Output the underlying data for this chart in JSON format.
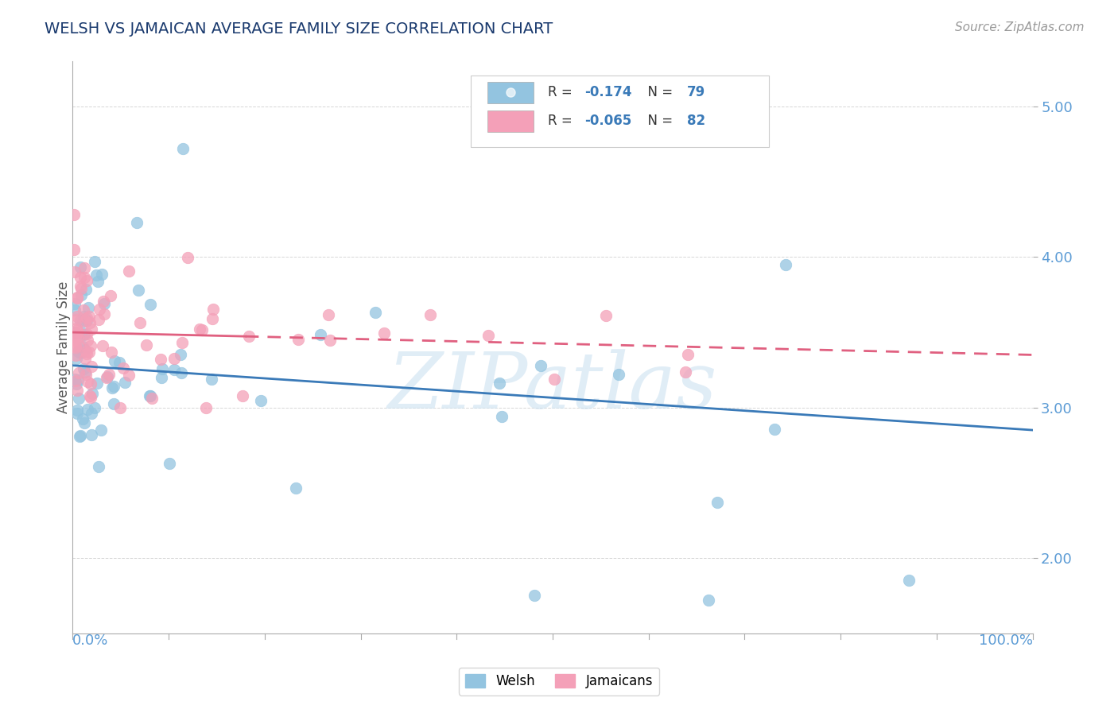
{
  "title": "WELSH VS JAMAICAN AVERAGE FAMILY SIZE CORRELATION CHART",
  "source": "Source: ZipAtlas.com",
  "ylabel": "Average Family Size",
  "yticks": [
    2.0,
    3.0,
    4.0,
    5.0
  ],
  "xlim": [
    0.0,
    1.0
  ],
  "ylim": [
    1.5,
    5.3
  ],
  "welsh_R": -0.174,
  "welsh_N": 79,
  "jamaican_R": -0.065,
  "jamaican_N": 82,
  "welsh_color": "#93c4e0",
  "jamaican_color": "#f4a0b8",
  "welsh_trend_color": "#3a7ab8",
  "jamaican_trend_color": "#e06080",
  "background_color": "#ffffff",
  "grid_color": "#cccccc",
  "title_color": "#1a3a6e",
  "source_color": "#999999",
  "axis_label_color": "#5b9bd5",
  "watermark_text": "ZIPatlas",
  "legend_text_color": "#1a3a6e",
  "legend_r_color": "#3a7ab8"
}
